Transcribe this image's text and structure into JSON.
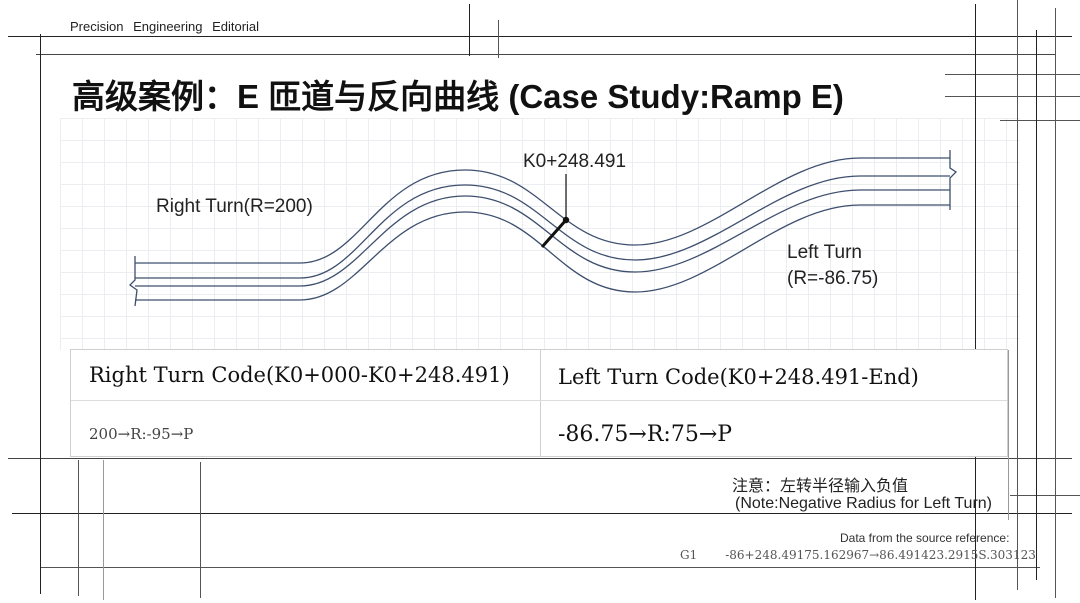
{
  "header": {
    "text": "Precision Engineering Editorial"
  },
  "title": "高级案例：E 匝道与反向曲线 (Case Study:Ramp E)",
  "diagram": {
    "station_label": "K0+248.491",
    "right_turn_label": "Right Turn(R=200)",
    "left_turn_label_line1": "Left Turn",
    "left_turn_label_line2": "(R=-86.75)"
  },
  "codes": {
    "right_header": "Right Turn Code(K0+000-K0+248.491)",
    "left_header": "Left Turn Code(K0+248.491-End)",
    "right_value": "200→R:-95→P",
    "left_value": "-86.75→R:75→P"
  },
  "note": {
    "line_zh": "注意：左转半径输入负值",
    "line_en": "(Note:Negative Radius for Left Turn)"
  },
  "source": {
    "label": "Data from the source reference:",
    "code": "G1",
    "values": "-86+248.49175.162967→86.491423.2915S.303123"
  },
  "colors": {
    "road_line": "#3d4f6e",
    "section_line": "#111111"
  }
}
